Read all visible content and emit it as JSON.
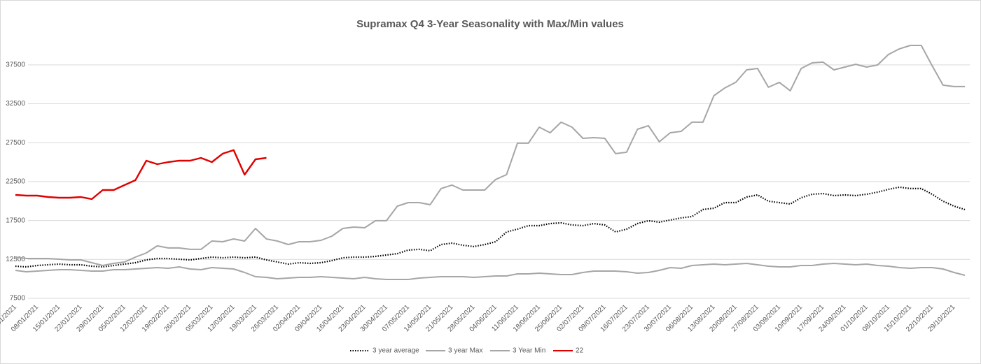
{
  "chart_data": {
    "type": "line",
    "title": "Supramax Q4 3-Year Seasonality with Max/Min values",
    "categories": [
      "01/01/2021",
      null,
      "08/01/2021",
      null,
      "15/01/2021",
      null,
      "22/01/2021",
      null,
      "29/01/2021",
      null,
      "05/02/2021",
      null,
      "12/02/2021",
      null,
      "19/02/2021",
      null,
      "26/02/2021",
      null,
      "05/03/2021",
      null,
      "12/03/2021",
      null,
      "19/03/2021",
      null,
      "26/03/2021",
      null,
      "02/04/2021",
      null,
      "09/04/2021",
      null,
      "16/04/2021",
      null,
      "23/04/2021",
      null,
      "30/04/2021",
      null,
      "07/05/2021",
      null,
      "14/05/2021",
      null,
      "21/05/2021",
      null,
      "28/05/2021",
      null,
      "04/06/2021",
      null,
      "11/06/2021",
      null,
      "18/06/2021",
      null,
      "25/06/2021",
      null,
      "02/07/2021",
      null,
      "09/07/2021",
      null,
      "16/07/2021",
      null,
      "23/07/2021",
      null,
      "30/07/2021",
      null,
      "06/08/2021",
      null,
      "13/08/2021",
      null,
      "20/08/2021",
      null,
      "27/08/2021",
      null,
      "03/09/2021",
      null,
      "10/09/2021",
      null,
      "17/09/2021",
      null,
      "24/09/2021",
      null,
      "01/10/2021",
      null,
      "08/10/2021",
      null,
      "15/10/2021",
      null,
      "22/10/2021",
      null,
      "29/10/2021",
      null
    ],
    "series": [
      {
        "name": "3 year average",
        "color": "#000000",
        "style": "dotted",
        "values": [
          11630,
          11540,
          11720,
          11810,
          11900,
          11810,
          11810,
          11630,
          11540,
          11720,
          11900,
          12080,
          12440,
          12620,
          12620,
          12530,
          12440,
          12620,
          12800,
          12710,
          12800,
          12710,
          12800,
          12440,
          12170,
          11900,
          12080,
          11990,
          12080,
          12350,
          12710,
          12800,
          12800,
          12890,
          13070,
          13250,
          13700,
          13790,
          13610,
          14410,
          14590,
          14320,
          14150,
          14410,
          14770,
          16030,
          16390,
          16840,
          16840,
          17110,
          17200,
          16930,
          16840,
          17110,
          16930,
          16030,
          16390,
          17110,
          17470,
          17290,
          17560,
          17830,
          18010,
          18910,
          19080,
          19800,
          19800,
          20520,
          20790,
          19980,
          19800,
          19620,
          20430,
          20880,
          20970,
          20700,
          20790,
          20700,
          20880,
          21150,
          21510,
          21780,
          21600,
          21600,
          20880,
          19980,
          19350,
          18900
        ]
      },
      {
        "name": "3 year Max",
        "color": "#a6a6a6",
        "style": "solid",
        "values": [
          12800,
          12620,
          12620,
          12620,
          12530,
          12440,
          12440,
          12080,
          11720,
          11990,
          12170,
          12800,
          13340,
          14240,
          13970,
          13970,
          13790,
          13790,
          14860,
          14770,
          15130,
          14860,
          16480,
          15130,
          14860,
          14410,
          14770,
          14770,
          14950,
          15490,
          16480,
          16660,
          16570,
          17470,
          17470,
          19350,
          19800,
          19800,
          19530,
          21600,
          22050,
          21420,
          21420,
          21420,
          22770,
          23390,
          27440,
          27440,
          29500,
          28780,
          30130,
          29500,
          28060,
          28150,
          28060,
          26090,
          26270,
          29230,
          29680,
          27620,
          28780,
          28960,
          30130,
          30130,
          33540,
          34530,
          35250,
          36860,
          37040,
          34620,
          35250,
          34170,
          37040,
          37760,
          37850,
          36860,
          37220,
          37580,
          37220,
          37490,
          38840,
          39560,
          40000,
          40000,
          37400,
          34890,
          34710,
          34710
        ]
      },
      {
        "name": "3 Year Min",
        "color": "#a6a6a6",
        "style": "solid",
        "values": [
          11090,
          10910,
          11000,
          11090,
          11180,
          11180,
          11090,
          11000,
          11000,
          11180,
          11180,
          11270,
          11360,
          11450,
          11360,
          11540,
          11270,
          11180,
          11450,
          11360,
          11270,
          10820,
          10280,
          10190,
          10010,
          10100,
          10190,
          10190,
          10280,
          10190,
          10100,
          10010,
          10190,
          10010,
          9920,
          9920,
          9920,
          10100,
          10190,
          10280,
          10280,
          10280,
          10190,
          10280,
          10370,
          10370,
          10640,
          10640,
          10730,
          10640,
          10550,
          10550,
          10820,
          11000,
          11000,
          11000,
          10910,
          10730,
          10820,
          11090,
          11450,
          11360,
          11720,
          11810,
          11900,
          11810,
          11900,
          11990,
          11810,
          11630,
          11540,
          11540,
          11720,
          11720,
          11900,
          11990,
          11900,
          11810,
          11900,
          11720,
          11630,
          11450,
          11360,
          11450,
          11450,
          11270,
          10820,
          10460
        ]
      },
      {
        "name": "22",
        "color": "#e00000",
        "style": "solid",
        "values": [
          20790,
          20700,
          20700,
          20520,
          20430,
          20430,
          20520,
          20250,
          21420,
          21420,
          22050,
          22680,
          25190,
          24740,
          25010,
          25190,
          25190,
          25550,
          25010,
          26090,
          26540,
          23390,
          25370,
          25550,
          null,
          null,
          null,
          null,
          null,
          null,
          null,
          null,
          null,
          null,
          null,
          null,
          null,
          null,
          null,
          null,
          null,
          null,
          null,
          null,
          null,
          null,
          null,
          null,
          null,
          null,
          null,
          null,
          null,
          null,
          null,
          null,
          null,
          null,
          null,
          null,
          null,
          null,
          null,
          null,
          null,
          null,
          null,
          null,
          null,
          null,
          null,
          null,
          null,
          null,
          null,
          null,
          null,
          null,
          null,
          null,
          null,
          null,
          null,
          null,
          null,
          null,
          null,
          null
        ]
      }
    ],
    "ylim": [
      7500,
      40000
    ],
    "yticks": [
      7500,
      12500,
      17500,
      22500,
      27500,
      32500,
      37500
    ],
    "grid": true,
    "legend": "bottom"
  }
}
